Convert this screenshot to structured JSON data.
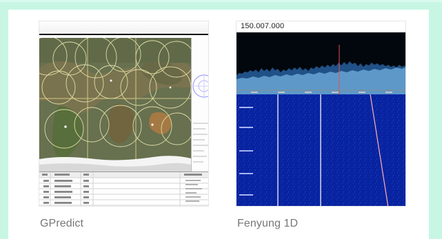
{
  "cards": [
    {
      "caption": "GPredict",
      "preview": "satellite tracking map"
    },
    {
      "caption": "Fenyung 1D",
      "preview": "spectrum waterfall",
      "frequency_text": "150.007.000"
    }
  ]
}
